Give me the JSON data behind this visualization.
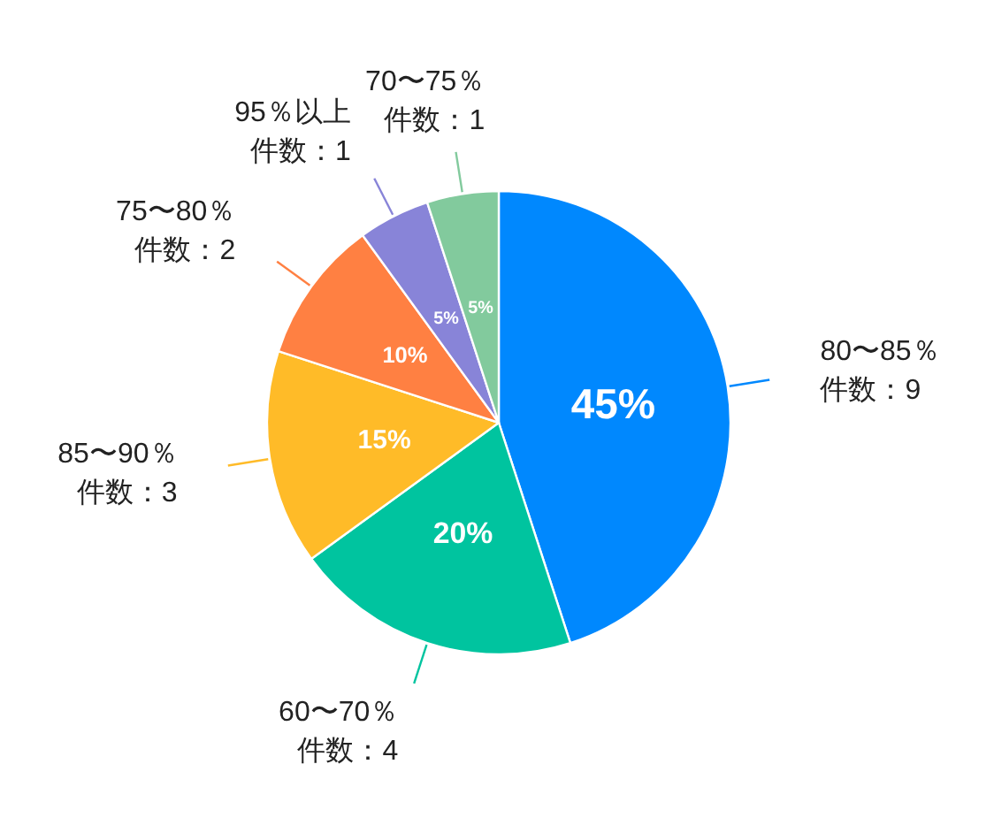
{
  "chart_data": {
    "type": "pie",
    "categories": [
      "80〜85％件数：9",
      "60〜70％件数：4",
      "85〜90％件数：3",
      "75〜80％件数：2",
      "95％以上件数：1",
      "70〜75％件数：1"
    ],
    "values": [
      45,
      20,
      15,
      10,
      5,
      5
    ],
    "colors": [
      "#0088fe",
      "#00c49f",
      "#ffbb28",
      "#ff8042",
      "#8884d8",
      "#82ca9d"
    ],
    "value_labels": [
      "45%",
      "20%",
      "15%",
      "10%",
      "5%",
      "5%"
    ]
  }
}
